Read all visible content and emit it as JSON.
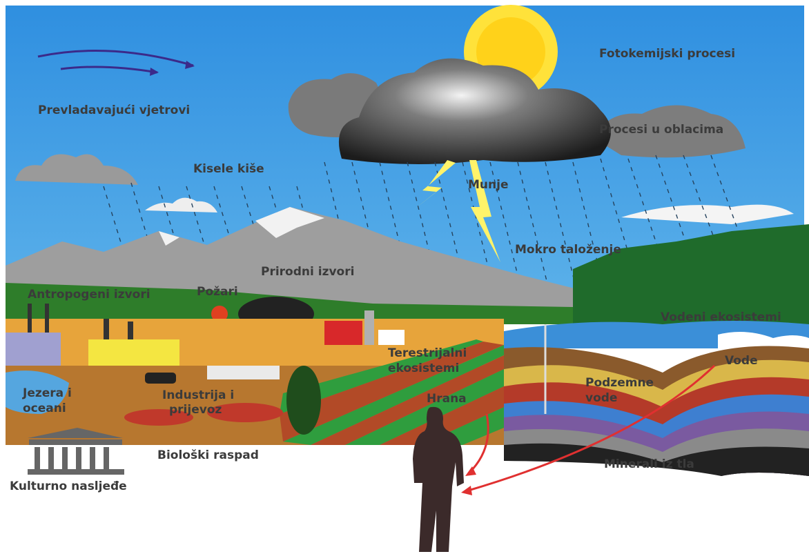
{
  "labels": [
    {
      "lines": [
        "Fotokemijski procesi"
      ]
    },
    {
      "lines": [
        "Prevladavajući vjetrovi"
      ]
    },
    {
      "lines": [
        "Procesi u oblacima"
      ]
    },
    {
      "lines": [
        "Kisele kiše"
      ]
    },
    {
      "lines": [
        "Munje"
      ]
    },
    {
      "lines": [
        "Mokro taloženje"
      ]
    },
    {
      "lines": [
        "Prirodni izvori"
      ]
    },
    {
      "lines": [
        "Antropogeni izvori"
      ]
    },
    {
      "lines": [
        "Požari"
      ]
    },
    {
      "lines": [
        "Vodeni ekosistemi"
      ]
    },
    {
      "lines": [
        "Terestrijalni",
        "ekosistemi"
      ]
    },
    {
      "lines": [
        "Vode"
      ]
    },
    {
      "lines": [
        "Podzemne",
        "vode"
      ]
    },
    {
      "lines": [
        "Jezera i",
        "oceani"
      ]
    },
    {
      "lines": [
        "Industrija i",
        "prijevoz"
      ]
    },
    {
      "lines": [
        "Hrana"
      ]
    },
    {
      "lines": [
        "Biološki raspad"
      ]
    },
    {
      "lines": [
        "Minerali iz tla"
      ]
    },
    {
      "lines": [
        "Kulturno nasljeđe"
      ]
    }
  ]
}
